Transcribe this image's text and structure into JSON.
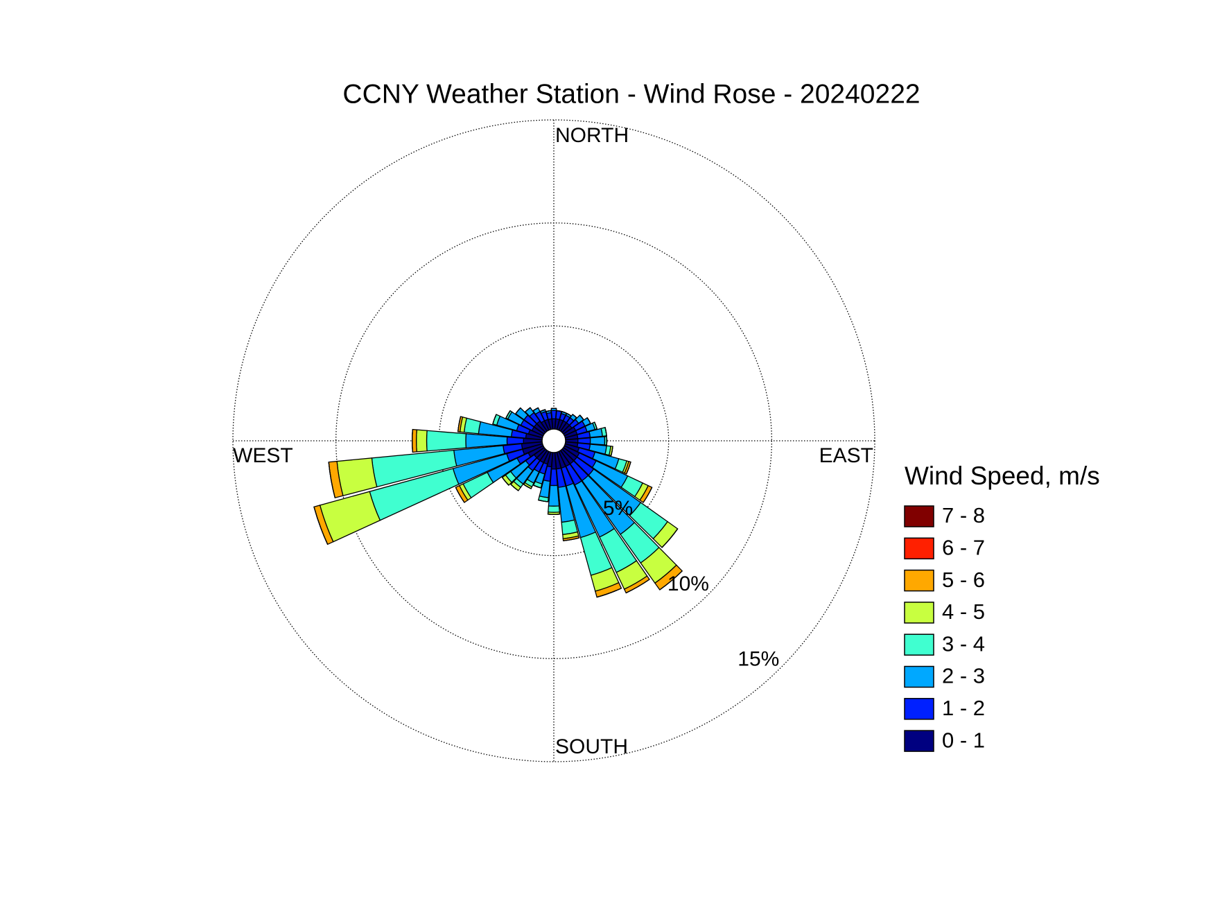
{
  "chart_data": {
    "type": "windrose",
    "title": "CCNY Weather Station - Wind Rose - 20240222",
    "direction_labels": [
      "NORTH",
      "EAST",
      "SOUTH",
      "WEST"
    ],
    "legend_title": "Wind Speed, m/s",
    "directions": [
      0,
      10,
      20,
      30,
      40,
      50,
      60,
      70,
      80,
      90,
      100,
      110,
      120,
      130,
      140,
      150,
      160,
      170,
      180,
      190,
      200,
      210,
      220,
      230,
      240,
      250,
      260,
      270,
      280,
      290,
      300,
      310,
      320,
      330,
      340,
      350
    ],
    "rlim": [
      0,
      15
    ],
    "rticks": [
      {
        "value": 5,
        "label": "5%"
      },
      {
        "value": 10,
        "label": "10%"
      },
      {
        "value": 15,
        "label": "15%"
      }
    ],
    "series": [
      {
        "name": "0 - 1",
        "color": "#000080",
        "values": [
          0.5,
          0.5,
          0.5,
          0.5,
          0.5,
          0.5,
          0.6,
          0.6,
          0.6,
          0.6,
          0.6,
          0.7,
          0.8,
          0.8,
          0.8,
          0.8,
          0.8,
          0.8,
          0.8,
          0.7,
          0.6,
          0.6,
          0.6,
          0.6,
          0.8,
          1.0,
          1.0,
          0.9,
          0.8,
          0.7,
          0.6,
          0.6,
          0.6,
          0.5,
          0.5,
          0.5
        ]
      },
      {
        "name": "1 - 2",
        "color": "#0020ff",
        "values": [
          0.4,
          0.4,
          0.3,
          0.3,
          0.3,
          0.4,
          0.5,
          0.5,
          0.6,
          0.6,
          0.6,
          0.8,
          0.9,
          1.0,
          1.0,
          1.0,
          0.9,
          0.9,
          0.8,
          0.7,
          0.5,
          0.5,
          0.6,
          0.5,
          0.6,
          0.8,
          0.9,
          0.8,
          0.7,
          0.6,
          0.6,
          0.6,
          0.5,
          0.5,
          0.4,
          0.3
        ]
      },
      {
        "name": "2 - 3",
        "color": "#00a8ff",
        "values": [
          0.1,
          0,
          0.1,
          0.1,
          0.2,
          0.3,
          0.3,
          0.4,
          0.6,
          0.7,
          0.8,
          1.2,
          1.7,
          2.8,
          3.2,
          2.8,
          2.6,
          1.7,
          1.0,
          0.8,
          0.5,
          0.6,
          0.8,
          0.9,
          1.6,
          2.7,
          2.4,
          2.0,
          1.6,
          1.0,
          0.7,
          0.5,
          0.3,
          0.2,
          0.1,
          0.1
        ]
      },
      {
        "name": "3 - 4",
        "color": "#40ffd0",
        "values": [
          0,
          0,
          0,
          0,
          0,
          0,
          0,
          0.1,
          0.2,
          0.1,
          0.2,
          0.4,
          0.8,
          1.6,
          1.7,
          1.9,
          1.9,
          0.6,
          0.3,
          0.2,
          0.2,
          0.2,
          0.2,
          0.3,
          1.3,
          4.2,
          4.0,
          1.9,
          0.7,
          0.2,
          0.1,
          0,
          0,
          0,
          0,
          0
        ]
      },
      {
        "name": "4 - 5",
        "color": "#c8ff40",
        "values": [
          0,
          0,
          0,
          0,
          0,
          0,
          0,
          0,
          0,
          0,
          0.1,
          0.1,
          0.3,
          0.6,
          1.2,
          0.9,
          0.8,
          0.2,
          0.1,
          0,
          0,
          0.1,
          0.2,
          0.2,
          0.2,
          2.5,
          1.7,
          0.5,
          0.2,
          0,
          0,
          0,
          0,
          0,
          0,
          0
        ]
      },
      {
        "name": "5 - 6",
        "color": "#ffa800",
        "values": [
          0,
          0,
          0,
          0,
          0,
          0,
          0,
          0,
          0,
          0,
          0,
          0.1,
          0.2,
          0,
          0.4,
          0.2,
          0.3,
          0.1,
          0,
          0,
          0,
          0,
          0,
          0,
          0.2,
          0.3,
          0.4,
          0.2,
          0.1,
          0,
          0,
          0,
          0,
          0,
          0,
          0
        ]
      },
      {
        "name": "6 - 7",
        "color": "#ff2000",
        "values": [
          0,
          0,
          0,
          0,
          0,
          0,
          0,
          0,
          0,
          0,
          0,
          0,
          0,
          0,
          0,
          0,
          0,
          0,
          0,
          0,
          0,
          0,
          0,
          0,
          0,
          0,
          0,
          0,
          0,
          0,
          0,
          0,
          0,
          0,
          0,
          0
        ]
      },
      {
        "name": "7 - 8",
        "color": "#800000",
        "values": [
          0,
          0,
          0,
          0,
          0,
          0,
          0,
          0,
          0,
          0,
          0,
          0,
          0,
          0,
          0,
          0,
          0,
          0,
          0,
          0,
          0,
          0,
          0,
          0,
          0,
          0,
          0,
          0,
          0,
          0,
          0,
          0,
          0,
          0,
          0,
          0
        ]
      }
    ]
  }
}
